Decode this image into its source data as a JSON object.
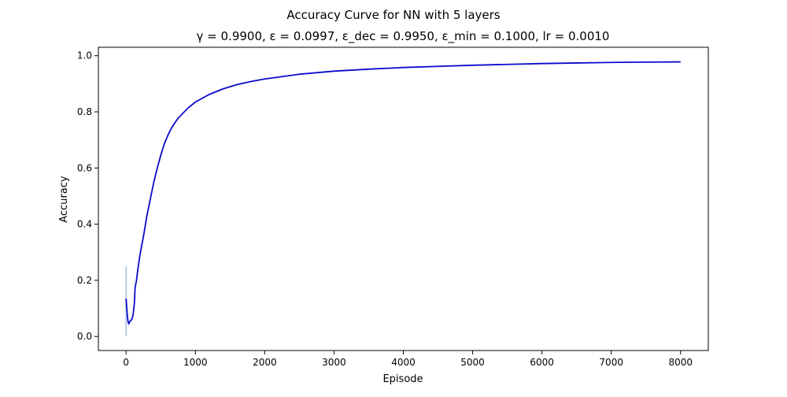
{
  "chart_data": {
    "type": "line",
    "title": "Accuracy Curve for NN with 5 layers",
    "subtitle": "γ = 0.9900, ε = 0.0997, ε_dec = 0.9950, ε_min = 0.1000, lr = 0.0010",
    "xlabel": "Episode",
    "ylabel": "Accuracy",
    "xlim": [
      -400,
      8400
    ],
    "ylim": [
      -0.05,
      1.03
    ],
    "xticks": [
      0,
      1000,
      2000,
      3000,
      4000,
      5000,
      6000,
      7000,
      8000
    ],
    "yticks": [
      0.0,
      0.2,
      0.4,
      0.6,
      0.8,
      1.0
    ],
    "xtick_labels": [
      "0",
      "1000",
      "2000",
      "3000",
      "4000",
      "5000",
      "6000",
      "7000",
      "8000"
    ],
    "ytick_labels": [
      "0.0",
      "0.2",
      "0.4",
      "0.6",
      "0.8",
      "1.0"
    ],
    "grid": false,
    "legend": "none",
    "series": [
      {
        "color": "#0a0acc",
        "style": "line",
        "points": [
          [
            0,
            0.135
          ],
          [
            10,
            0.1
          ],
          [
            20,
            0.07
          ],
          [
            30,
            0.05
          ],
          [
            40,
            0.045
          ],
          [
            50,
            0.052
          ],
          [
            60,
            0.055
          ],
          [
            80,
            0.06
          ],
          [
            100,
            0.075
          ],
          [
            120,
            0.12
          ],
          [
            130,
            0.175
          ],
          [
            150,
            0.2
          ],
          [
            170,
            0.24
          ],
          [
            200,
            0.29
          ],
          [
            230,
            0.33
          ],
          [
            260,
            0.37
          ],
          [
            300,
            0.43
          ],
          [
            350,
            0.49
          ],
          [
            400,
            0.55
          ],
          [
            450,
            0.6
          ],
          [
            500,
            0.645
          ],
          [
            550,
            0.685
          ],
          [
            600,
            0.715
          ],
          [
            650,
            0.74
          ],
          [
            700,
            0.76
          ],
          [
            750,
            0.777
          ],
          [
            800,
            0.79
          ],
          [
            900,
            0.815
          ],
          [
            1000,
            0.835
          ],
          [
            1200,
            0.862
          ],
          [
            1400,
            0.882
          ],
          [
            1600,
            0.897
          ],
          [
            1800,
            0.908
          ],
          [
            2000,
            0.917
          ],
          [
            2500,
            0.934
          ],
          [
            3000,
            0.945
          ],
          [
            3500,
            0.952
          ],
          [
            4000,
            0.958
          ],
          [
            4500,
            0.962
          ],
          [
            5000,
            0.966
          ],
          [
            5500,
            0.969
          ],
          [
            6000,
            0.972
          ],
          [
            6500,
            0.974
          ],
          [
            7000,
            0.976
          ],
          [
            7500,
            0.977
          ],
          [
            8000,
            0.978
          ]
        ]
      },
      {
        "color": "#b5d1e6",
        "style": "band",
        "points": [
          [
            0,
            0.0
          ],
          [
            0,
            0.25
          ]
        ]
      }
    ]
  }
}
